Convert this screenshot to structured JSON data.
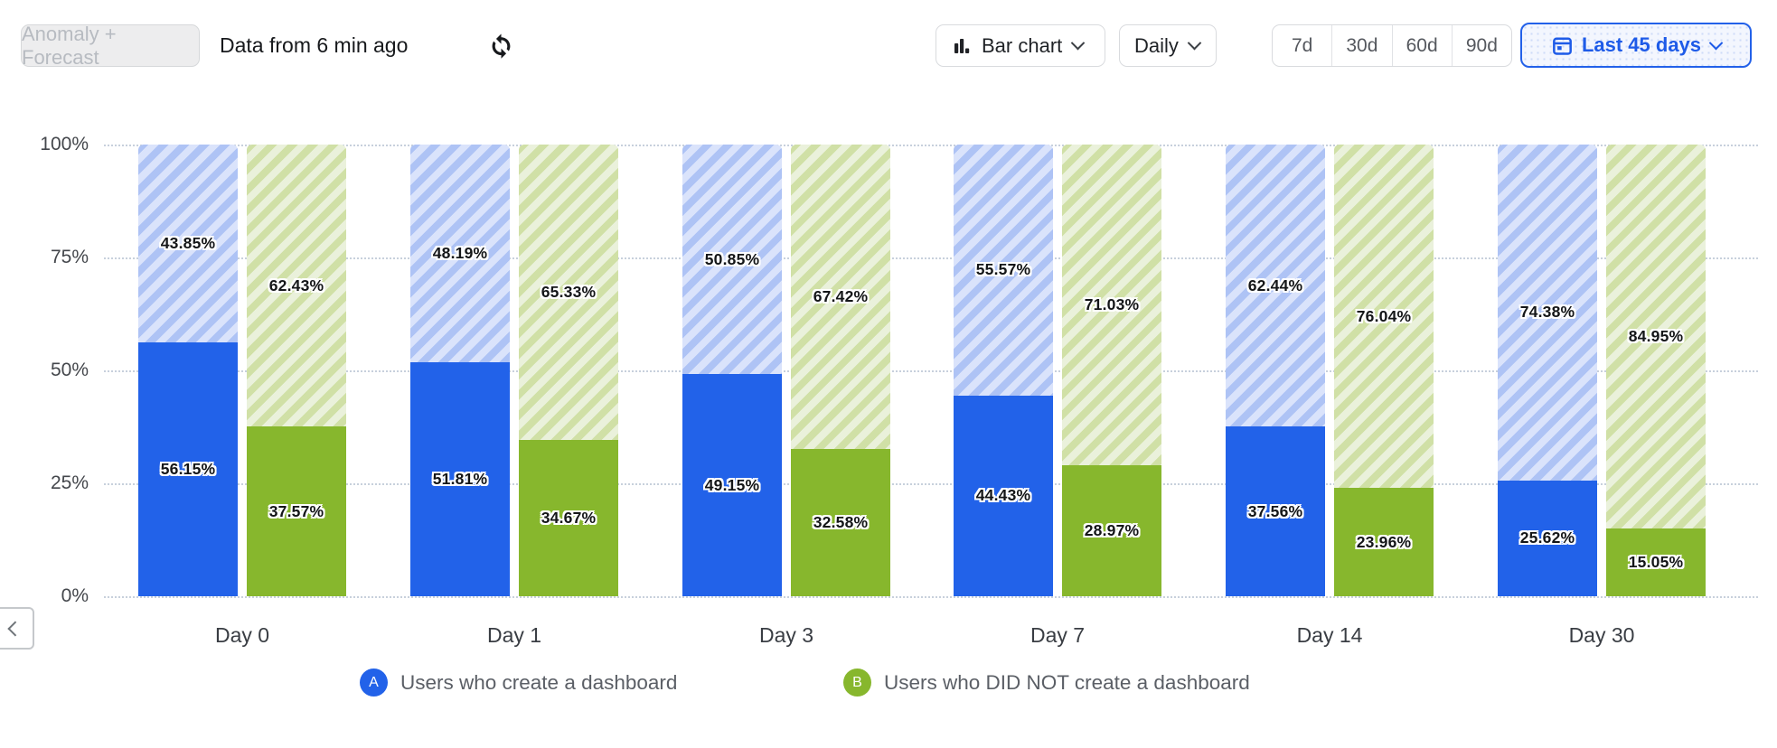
{
  "header": {
    "anomaly_button": "Anomaly + Forecast",
    "data_freshness": "Data from 6 min ago",
    "chart_type_label": "Bar chart",
    "granularity_label": "Daily",
    "range_presets": [
      "7d",
      "30d",
      "60d",
      "90d"
    ],
    "date_range_label": "Last 45 days"
  },
  "chart_data": {
    "type": "bar",
    "stacked": true,
    "unit": "%",
    "title": "",
    "categories": [
      "Day 0",
      "Day 1",
      "Day 3",
      "Day 7",
      "Day 14",
      "Day 30"
    ],
    "series": [
      {
        "letter": "A",
        "name": "Users who create a dashboard",
        "color": "#2262e9",
        "solid_values": [
          56.15,
          51.81,
          49.15,
          44.43,
          37.56,
          25.62
        ],
        "hatched_remainder_values": [
          43.85,
          48.19,
          50.85,
          55.57,
          62.44,
          74.38
        ]
      },
      {
        "letter": "B",
        "name": "Users who DID NOT create a dashboard",
        "color": "#87b72d",
        "solid_values": [
          37.57,
          34.67,
          32.58,
          28.97,
          23.96,
          15.05
        ],
        "hatched_remainder_values": [
          62.43,
          65.33,
          67.42,
          71.03,
          76.04,
          84.95
        ]
      }
    ],
    "y_ticks": [
      "100%",
      "75%",
      "50%",
      "25%",
      "0%"
    ],
    "ylim": [
      0,
      100
    ],
    "grid": "dotted horizontal",
    "legend_position": "bottom"
  },
  "legend": [
    {
      "letter": "A",
      "label": "Users who create a dashboard"
    },
    {
      "letter": "B",
      "label": "Users who DID NOT create a dashboard"
    }
  ],
  "colors": {
    "accent_blue": "#1e5be8",
    "series_a_solid": "#2262e9",
    "series_a_hatch_bg": "#dae3fb",
    "series_a_hatch_stripe": "#aec3f5",
    "series_b_solid": "#87b72d",
    "series_b_hatch_bg": "#eaf1db",
    "series_b_hatch_stripe": "#d0e0a6",
    "grid_dot": "#c7d0dc"
  }
}
